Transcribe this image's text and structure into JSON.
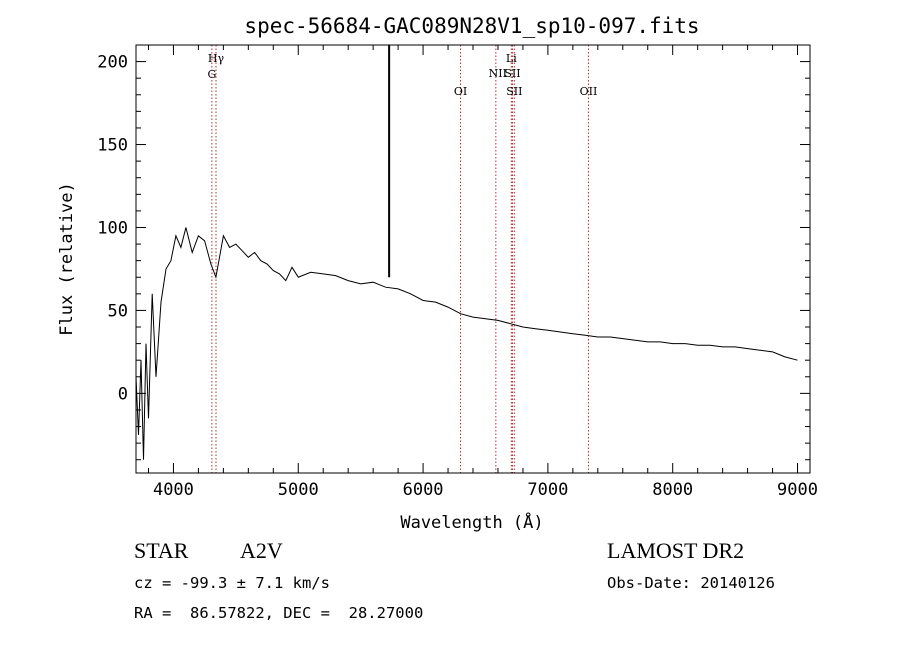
{
  "chart_data": {
    "type": "line",
    "title": "spec-56684-GAC089N28V1_sp10-097.fits",
    "xlabel": "Wavelength (Å)",
    "ylabel": "Flux (relative)",
    "xlim": [
      3700,
      9100
    ],
    "ylim": [
      -48,
      210
    ],
    "xticks": [
      4000,
      5000,
      6000,
      7000,
      8000,
      9000
    ],
    "yticks": [
      0,
      50,
      100,
      150,
      200
    ],
    "grid": false,
    "series": [
      {
        "x": [
          3700,
          3720,
          3740,
          3760,
          3780,
          3800,
          3830,
          3860,
          3900,
          3940,
          3980,
          4020,
          4060,
          4100,
          4150,
          4200,
          4250,
          4300,
          4340,
          4400,
          4450,
          4500,
          4550,
          4600,
          4650,
          4700,
          4750,
          4800,
          4850,
          4900,
          4950,
          5000,
          5100,
          5200,
          5300,
          5400,
          5500,
          5600,
          5700,
          5800,
          5900,
          6000,
          6100,
          6200,
          6300,
          6400,
          6500,
          6600,
          6700,
          6800,
          6900,
          7000,
          7100,
          7200,
          7300,
          7400,
          7500,
          7600,
          7700,
          7800,
          7900,
          8000,
          8100,
          8200,
          8300,
          8400,
          8500,
          8600,
          8700,
          8800,
          8900,
          9000
        ],
        "y": [
          10,
          -25,
          20,
          -40,
          30,
          -15,
          60,
          10,
          55,
          75,
          80,
          95,
          88,
          100,
          85,
          95,
          92,
          78,
          70,
          95,
          88,
          90,
          86,
          82,
          85,
          80,
          78,
          74,
          72,
          68,
          76,
          70,
          73,
          72,
          71,
          68,
          66,
          67,
          64,
          63,
          60,
          56,
          55,
          52,
          48,
          46,
          45,
          44,
          42,
          40,
          39,
          38,
          37,
          36,
          35,
          34,
          34,
          33,
          32,
          31,
          31,
          30,
          30,
          29,
          29,
          28,
          28,
          27,
          26,
          25,
          22,
          20
        ]
      }
    ],
    "spikes": [
      {
        "x": 5728,
        "y0": 70,
        "y1": 210
      }
    ],
    "line_markers": [
      {
        "x": 4308,
        "label": "G",
        "label2": ""
      },
      {
        "x": 4341,
        "label": "Hγ",
        "label2": ""
      },
      {
        "x": 6300,
        "label": "OI",
        "label2": ""
      },
      {
        "x": 6583,
        "label": "NII",
        "label2": ""
      },
      {
        "x": 6707,
        "label": "Li",
        "label2": ""
      },
      {
        "x": 6716,
        "label": "SII",
        "label2": ""
      },
      {
        "x": 6731,
        "label": "SII",
        "label2": ""
      },
      {
        "x": 7325,
        "label": "OII",
        "label2": ""
      }
    ],
    "marker_color": "#b03030"
  },
  "info": {
    "object_class": "STAR",
    "subclass": "A2V",
    "survey": "LAMOST DR2",
    "cz": "cz = -99.3 ± 7.1 km/s",
    "obs_date": "Obs-Date: 20140126",
    "coords": "RA =  86.57822, DEC =  28.27000"
  }
}
